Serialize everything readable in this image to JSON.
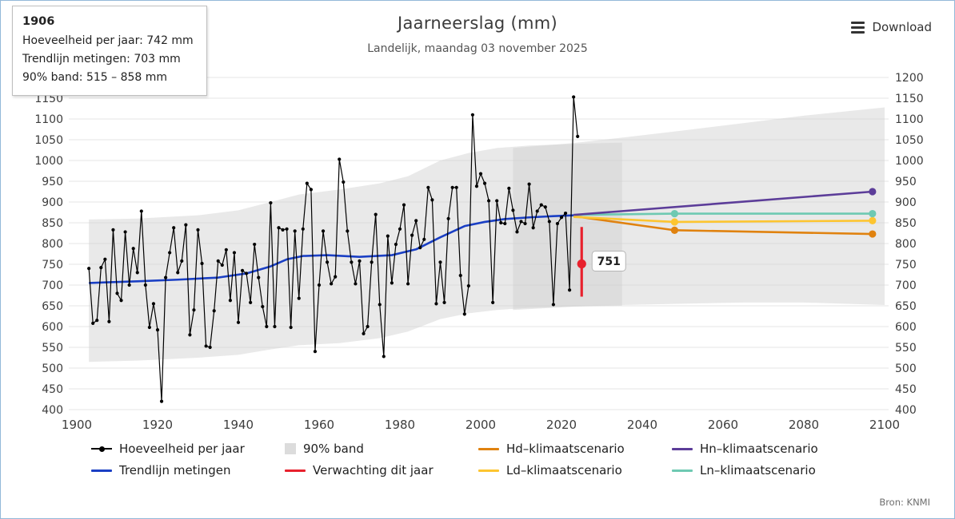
{
  "header": {
    "title": "Jaarneerslag (mm)",
    "subtitle": "Landelijk, maandag 03 november 2025",
    "download_label": "Download"
  },
  "tooltip": {
    "year": "1906",
    "lines": [
      "Hoeveelheid per jaar: 742 mm",
      "Trendlijn metingen: 703 mm",
      "90% band: 515 – 858 mm"
    ]
  },
  "source": "Bron: KNMI",
  "colors": {
    "yearly": "#000000",
    "trend": "#1a3fc4",
    "band": "#cfcfcf",
    "forecast": "#e8212d",
    "hd": "#e0820f",
    "ld": "#fdc530",
    "hn": "#5c3d99",
    "ln": "#6ec9b2",
    "grid": "#e6e6e6",
    "axis_text": "#3d3d3d"
  },
  "legend": [
    {
      "label": "Hoeveelheid per jaar",
      "marker": "line-dot",
      "color": "#000000"
    },
    {
      "label": "90% band",
      "marker": "box",
      "color": "#dcdcdc"
    },
    {
      "label": "Hd–klimaatscenario",
      "marker": "line",
      "color": "#e0820f"
    },
    {
      "label": "Hn–klimaatscenario",
      "marker": "line",
      "color": "#5c3d99"
    },
    {
      "label": "Trendlijn metingen",
      "marker": "line",
      "color": "#1a3fc4"
    },
    {
      "label": "Verwachting dit jaar",
      "marker": "line",
      "color": "#e8212d"
    },
    {
      "label": "Ld–klimaatscenario",
      "marker": "line",
      "color": "#fdc530"
    },
    {
      "label": "Ln–klimaatscenario",
      "marker": "line",
      "color": "#6ec9b2"
    }
  ],
  "chart_data": {
    "type": "line",
    "title": "Jaarneerslag (mm)",
    "subtitle": "Landelijk, maandag 03 november 2025",
    "xlabel": "",
    "ylabel": "mm",
    "axes": {
      "xlim": [
        1897,
        2103
      ],
      "ylim": [
        400,
        1200
      ],
      "x_ticks": [
        1900,
        1920,
        1940,
        1960,
        1980,
        2000,
        2020,
        2040,
        2060,
        2080,
        2100
      ],
      "y_ticks_left": [
        400,
        450,
        500,
        550,
        600,
        650,
        700,
        750,
        800,
        850,
        900,
        950,
        1000,
        1050,
        1100,
        1150
      ],
      "y_ticks_right": [
        400,
        450,
        500,
        550,
        600,
        650,
        700,
        750,
        800,
        850,
        900,
        950,
        1000,
        1050,
        1100,
        1150,
        1200
      ],
      "grid": true
    },
    "yearly": {
      "name": "Hoeveelheid per jaar",
      "year_start": 1903,
      "values": [
        740,
        608,
        615,
        742,
        762,
        612,
        833,
        680,
        663,
        828,
        700,
        788,
        730,
        878,
        700,
        598,
        655,
        592,
        420,
        718,
        778,
        838,
        730,
        758,
        845,
        580,
        640,
        833,
        752,
        553,
        550,
        638,
        758,
        748,
        785,
        663,
        778,
        610,
        735,
        728,
        658,
        798,
        718,
        648,
        600,
        898,
        600,
        838,
        833,
        835,
        598,
        830,
        668,
        835,
        945,
        930,
        540,
        700,
        830,
        755,
        703,
        720,
        1003,
        948,
        830,
        755,
        703,
        758,
        583,
        600,
        755,
        870,
        653,
        528,
        818,
        705,
        798,
        835,
        893,
        703,
        820,
        855,
        790,
        810,
        935,
        905,
        655,
        755,
        658,
        860,
        935,
        935,
        723,
        630,
        698,
        1110,
        938,
        968,
        945,
        903,
        658,
        903,
        850,
        848,
        933,
        880,
        828,
        853,
        848,
        943,
        838,
        878,
        893,
        888,
        853,
        653,
        848,
        863,
        873,
        688,
        1153,
        1058
      ]
    },
    "trend": {
      "name": "Trendlijn metingen",
      "points": [
        [
          1903,
          705
        ],
        [
          1915,
          709
        ],
        [
          1925,
          713
        ],
        [
          1935,
          718
        ],
        [
          1942,
          728
        ],
        [
          1948,
          745
        ],
        [
          1952,
          762
        ],
        [
          1956,
          770
        ],
        [
          1962,
          772
        ],
        [
          1970,
          768
        ],
        [
          1978,
          772
        ],
        [
          1984,
          786
        ],
        [
          1990,
          815
        ],
        [
          1996,
          842
        ],
        [
          2001,
          852
        ],
        [
          2006,
          859
        ],
        [
          2012,
          863
        ],
        [
          2018,
          866
        ],
        [
          2023,
          868
        ]
      ]
    },
    "band_hist": {
      "name": "90% band (metingen)",
      "points": [
        [
          1903,
          515,
          858
        ],
        [
          1915,
          518,
          860
        ],
        [
          1930,
          525,
          868
        ],
        [
          1940,
          532,
          880
        ],
        [
          1948,
          545,
          900
        ],
        [
          1955,
          555,
          918
        ],
        [
          1965,
          560,
          930
        ],
        [
          1975,
          572,
          945
        ],
        [
          1982,
          588,
          962
        ],
        [
          1990,
          618,
          1000
        ],
        [
          1997,
          632,
          1018
        ],
        [
          2004,
          640,
          1030
        ],
        [
          2012,
          645,
          1036
        ],
        [
          2023,
          648,
          1040
        ],
        [
          2035,
          650,
          1043
        ]
      ]
    },
    "band_future": {
      "name": "90% band (scenario)",
      "points": [
        [
          2008,
          640,
          1030
        ],
        [
          2023,
          648,
          1042
        ],
        [
          2035,
          652,
          1055
        ],
        [
          2050,
          655,
          1072
        ],
        [
          2065,
          658,
          1090
        ],
        [
          2080,
          658,
          1108
        ],
        [
          2100,
          652,
          1128
        ]
      ]
    },
    "forecast": {
      "name": "Verwachting dit jaar",
      "year": 2025,
      "value": 751,
      "low": 672,
      "high": 840,
      "label": "751"
    },
    "scenarios": [
      {
        "name": "Hd–klimaatscenario",
        "key": "hd",
        "points": [
          [
            2023,
            866
          ],
          [
            2048,
            832
          ],
          [
            2097,
            823
          ]
        ],
        "dots": [
          [
            2048,
            832
          ],
          [
            2097,
            823
          ]
        ]
      },
      {
        "name": "Ld–klimaatscenario",
        "key": "ld",
        "points": [
          [
            2023,
            864
          ],
          [
            2048,
            852
          ],
          [
            2097,
            855
          ]
        ],
        "dots": [
          [
            2048,
            852
          ],
          [
            2097,
            855
          ]
        ]
      },
      {
        "name": "Ln–klimaatscenario",
        "key": "ln",
        "points": [
          [
            2023,
            869
          ],
          [
            2048,
            872
          ],
          [
            2097,
            872
          ]
        ],
        "dots": [
          [
            2048,
            872
          ],
          [
            2097,
            872
          ]
        ]
      },
      {
        "name": "Hn–klimaatscenario",
        "key": "hn",
        "points": [
          [
            2023,
            869
          ],
          [
            2097,
            925
          ]
        ],
        "dots": [
          [
            2097,
            925
          ]
        ]
      }
    ]
  }
}
